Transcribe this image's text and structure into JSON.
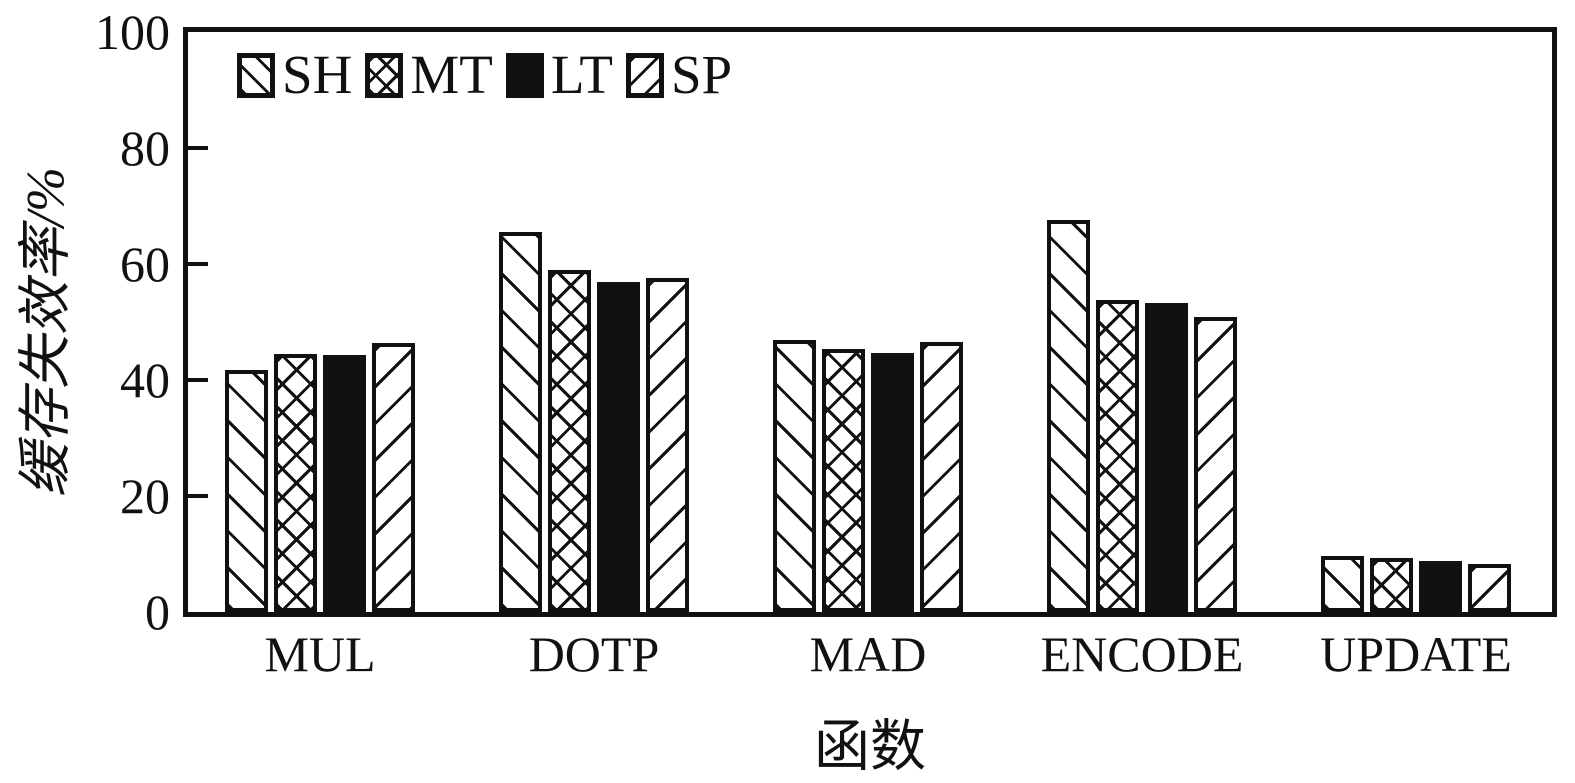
{
  "background_color": "#ffffff",
  "ink_color": "#111111",
  "chart_data": {
    "type": "bar",
    "xlabel": "函数",
    "ylabel": "缓存失效率/%",
    "ylim": [
      0,
      100
    ],
    "yticks": [
      0,
      20,
      40,
      60,
      80,
      100
    ],
    "grid": false,
    "legend_position": "top-left-inside",
    "categories": [
      "MUL",
      "DOTP",
      "MAD",
      "ENCODE",
      "UPDATE"
    ],
    "series": [
      {
        "name": "SH",
        "pattern": "diagonal-backslash-hatch",
        "values": [
          41.8,
          65.5,
          46.9,
          67.5,
          9.7
        ]
      },
      {
        "name": "MT",
        "pattern": "crosshatch",
        "values": [
          44.4,
          59.0,
          45.3,
          53.8,
          9.3
        ]
      },
      {
        "name": "LT",
        "pattern": "solid-fill",
        "values": [
          44.3,
          56.9,
          44.7,
          53.3,
          8.8
        ]
      },
      {
        "name": "SP",
        "pattern": "diagonal-slash-hatch",
        "values": [
          46.3,
          57.6,
          46.6,
          50.9,
          8.3
        ]
      }
    ]
  }
}
